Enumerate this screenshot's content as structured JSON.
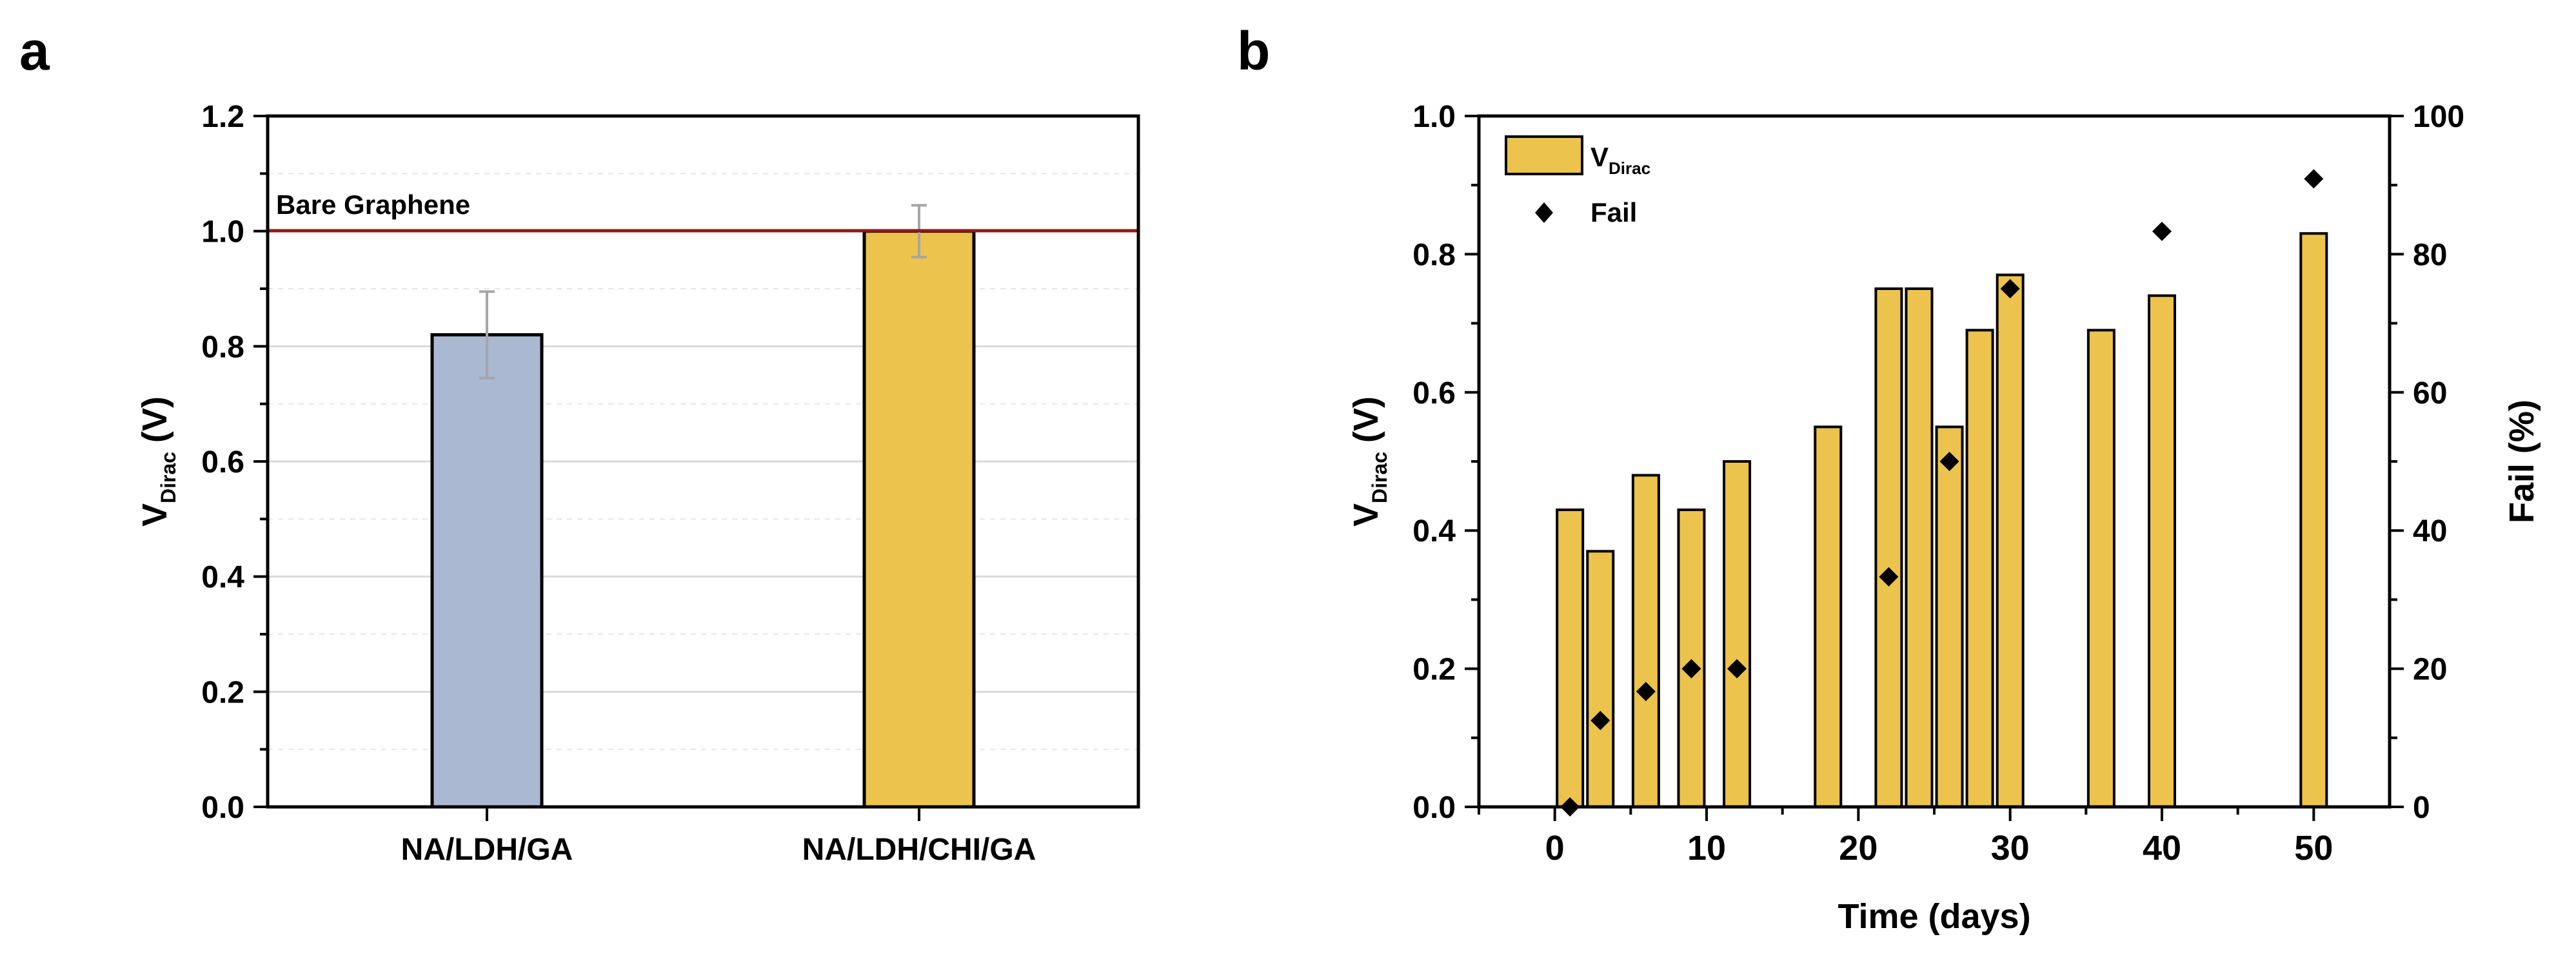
{
  "panels": {
    "a": {
      "label": "a"
    },
    "b": {
      "label": "b"
    }
  },
  "chart_data": [
    {
      "panel": "a",
      "type": "bar",
      "categories": [
        "NA/LDH/GA",
        "NA/LDH/CHI/GA"
      ],
      "values": [
        0.82,
        1.0
      ],
      "errors": [
        0.075,
        0.045
      ],
      "colors": [
        "#aab8d2",
        "#ecc34c"
      ],
      "ylabel_main": "V",
      "ylabel_sub": "Dirac",
      "ylabel_unit": "(V)",
      "ylim": [
        0,
        1.2
      ],
      "yticks": [
        "0.0",
        "0.2",
        "0.4",
        "0.6",
        "0.8",
        "1.0",
        "1.2"
      ],
      "reference_line": {
        "label": "Bare Graphene",
        "value": 1.0,
        "color": "#8b1a1a"
      },
      "grid": true
    },
    {
      "panel": "b",
      "type": "bar",
      "bar_series": {
        "name_main": "V",
        "name_sub": "Dirac",
        "color": "#ecc34c",
        "x": [
          1,
          3,
          6,
          9,
          12,
          18,
          22,
          24,
          26,
          28,
          30,
          36,
          40,
          50
        ],
        "values": [
          0.43,
          0.37,
          0.48,
          0.43,
          0.5,
          0.55,
          0.75,
          0.75,
          0.55,
          0.69,
          0.77,
          0.69,
          0.74,
          0.83
        ]
      },
      "scatter_series": {
        "name": "Fail",
        "marker": "diamond",
        "color": "#000000",
        "x": [
          1,
          3,
          6,
          9,
          12,
          22,
          26,
          30,
          40,
          50
        ],
        "values": [
          0,
          12.5,
          16.7,
          20,
          20,
          33.3,
          50,
          75,
          83.3,
          90.9
        ]
      },
      "xlabel": "Time (days)",
      "xlim": [
        -5,
        55
      ],
      "xticks": [
        "0",
        "10",
        "20",
        "30",
        "40",
        "50"
      ],
      "ylabel_main": "V",
      "ylabel_sub": "Dirac",
      "ylabel_unit": "(V)",
      "ylim": [
        0,
        1.0
      ],
      "yticks": [
        "0.0",
        "0.2",
        "0.4",
        "0.6",
        "0.8",
        "1.0"
      ],
      "y2label": "Fail (%)",
      "y2lim": [
        0,
        100
      ],
      "y2ticks": [
        "0",
        "20",
        "40",
        "60",
        "80",
        "100"
      ],
      "legend_position": "top-left"
    }
  ]
}
